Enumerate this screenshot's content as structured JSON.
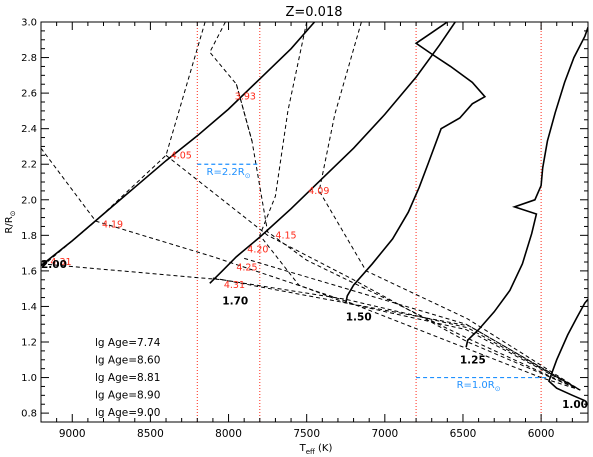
{
  "chart_data": {
    "type": "line",
    "title": "Z=0.018",
    "xlabel_main": "T",
    "xlabel_sub": "eff",
    "xlabel_unit": " (K)",
    "ylabel_main": "R/R",
    "ylabel_sub": "⊙",
    "xlim": [
      9200,
      5700
    ],
    "ylim": [
      0.75,
      3.0
    ],
    "x_ticks": [
      9000,
      8500,
      8000,
      7500,
      7000,
      6500,
      6000
    ],
    "x_tick_labels": [
      "9000",
      "8500",
      "8000",
      "7500",
      "7000",
      "6500",
      "6000"
    ],
    "y_ticks": [
      0.8,
      1.0,
      1.2,
      1.4,
      1.6,
      1.8,
      2.0,
      2.2,
      2.4,
      2.6,
      2.8,
      3.0
    ],
    "y_tick_labels": [
      "0.8",
      "1.0",
      "1.2",
      "1.4",
      "1.6",
      "1.8",
      "2.0",
      "2.2",
      "2.4",
      "2.6",
      "2.8",
      "3.0"
    ],
    "vlines": [
      8200,
      7800,
      6800,
      6000
    ],
    "colors": {
      "track": "#000000",
      "isochrone": "#000000",
      "age_label": "#ff2a1a",
      "radius_line": "#1e90ff",
      "vline": "#ff2a1a"
    },
    "tracks": [
      {
        "mass_label": "2.00",
        "label_at": [
          9200,
          1.615
        ],
        "points": [
          [
            9200,
            1.63
          ],
          [
            9000,
            1.77
          ],
          [
            8800,
            1.92
          ],
          [
            8600,
            2.07
          ],
          [
            8400,
            2.22
          ],
          [
            8200,
            2.36
          ],
          [
            8000,
            2.51
          ],
          [
            7800,
            2.68
          ],
          [
            7600,
            2.85
          ],
          [
            7450,
            3.0
          ]
        ]
      },
      {
        "mass_label": "1.70",
        "label_at": [
          8040,
          1.41
        ],
        "points": [
          [
            8120,
            1.53
          ],
          [
            8040,
            1.6
          ],
          [
            7950,
            1.68
          ],
          [
            7800,
            1.79
          ],
          [
            7600,
            1.95
          ],
          [
            7400,
            2.12
          ],
          [
            7200,
            2.29
          ],
          [
            7000,
            2.48
          ],
          [
            6800,
            2.69
          ],
          [
            6650,
            2.87
          ],
          [
            6550,
            3.0
          ]
        ]
      },
      {
        "mass_label": "1.50",
        "label_at": [
          7250,
          1.32
        ],
        "points": [
          [
            7250,
            1.42
          ],
          [
            7240,
            1.46
          ],
          [
            7200,
            1.52
          ],
          [
            7080,
            1.64
          ],
          [
            6950,
            1.78
          ],
          [
            6850,
            1.93
          ],
          [
            6780,
            2.07
          ],
          [
            6720,
            2.21
          ],
          [
            6640,
            2.4
          ],
          [
            6520,
            2.46
          ],
          [
            6440,
            2.54
          ],
          [
            6360,
            2.58
          ],
          [
            6440,
            2.66
          ],
          [
            6580,
            2.75
          ],
          [
            6700,
            2.82
          ],
          [
            6800,
            2.88
          ],
          [
            6700,
            2.94
          ],
          [
            6600,
            3.0
          ]
        ]
      },
      {
        "mass_label": "1.25",
        "label_at": [
          6520,
          1.08
        ],
        "points": [
          [
            6480,
            1.17
          ],
          [
            6470,
            1.21
          ],
          [
            6400,
            1.27
          ],
          [
            6300,
            1.37
          ],
          [
            6200,
            1.49
          ],
          [
            6120,
            1.64
          ],
          [
            6060,
            1.81
          ],
          [
            6030,
            1.92
          ],
          [
            6170,
            1.96
          ],
          [
            6040,
            2.0
          ],
          [
            6000,
            2.08
          ],
          [
            5990,
            2.18
          ],
          [
            5960,
            2.33
          ],
          [
            5910,
            2.49
          ],
          [
            5850,
            2.66
          ],
          [
            5790,
            2.8
          ],
          [
            5720,
            2.92
          ],
          [
            5700,
            2.97
          ]
        ]
      },
      {
        "mass_label": "1.00",
        "label_at": [
          5700,
          0.83
        ],
        "points": [
          [
            5720,
            0.87
          ],
          [
            5800,
            0.9
          ],
          [
            5900,
            0.94
          ],
          [
            5950,
            0.98
          ],
          [
            5900,
            1.1
          ],
          [
            5830,
            1.24
          ],
          [
            5770,
            1.34
          ],
          [
            5720,
            1.42
          ],
          [
            5700,
            1.44
          ]
        ]
      }
    ],
    "isochrones": [
      {
        "points": [
          [
            9200,
            2.29
          ],
          [
            8850,
            1.88
          ],
          [
            8100,
            1.68
          ],
          [
            7250,
            1.43
          ],
          [
            6000,
            1.0
          ],
          [
            5750,
            0.93
          ]
        ]
      },
      {
        "points": [
          [
            8400,
            2.25
          ],
          [
            7750,
            1.8
          ],
          [
            7200,
            1.55
          ],
          [
            6470,
            1.2
          ],
          [
            5750,
            0.93
          ]
        ]
      },
      {
        "points": [
          [
            8020,
            3.0
          ],
          [
            8120,
            2.83
          ],
          [
            7950,
            2.65
          ],
          [
            7850,
            2.33
          ],
          [
            7750,
            1.82
          ],
          [
            7500,
            1.66
          ],
          [
            6470,
            1.22
          ],
          [
            5750,
            0.93
          ]
        ]
      },
      {
        "points": [
          [
            8150,
            3.0
          ],
          [
            8400,
            2.25
          ],
          [
            8850,
            1.88
          ],
          [
            9200,
            1.62
          ]
        ]
      },
      {
        "points": [
          [
            7500,
            3.0
          ],
          [
            7620,
            2.5
          ],
          [
            7700,
            2.02
          ],
          [
            7800,
            1.8
          ],
          [
            7550,
            1.52
          ],
          [
            7250,
            1.42
          ],
          [
            6480,
            1.27
          ],
          [
            5750,
            0.93
          ]
        ]
      },
      {
        "points": [
          [
            7950,
            2.65
          ],
          [
            7850,
            2.33
          ]
        ]
      },
      {
        "points": [
          [
            9200,
            1.64
          ],
          [
            8040,
            1.55
          ],
          [
            7250,
            1.44
          ],
          [
            6470,
            1.28
          ],
          [
            5750,
            0.93
          ]
        ]
      },
      {
        "points": [
          [
            8100,
            1.56
          ],
          [
            6460,
            1.29
          ],
          [
            5750,
            0.93
          ]
        ]
      },
      {
        "points": [
          [
            7900,
            1.67
          ],
          [
            6480,
            1.3
          ],
          [
            5750,
            0.93
          ]
        ]
      },
      {
        "points": [
          [
            7150,
            3.0
          ],
          [
            7320,
            2.48
          ],
          [
            7420,
            2.05
          ],
          [
            7120,
            1.6
          ],
          [
            6470,
            1.33
          ],
          [
            5750,
            0.93
          ]
        ]
      }
    ],
    "age_labels": [
      {
        "text": "3.93",
        "at": [
          7960,
          2.58
        ]
      },
      {
        "text": "4.05",
        "at": [
          8370,
          2.25
        ]
      },
      {
        "text": "4.09",
        "at": [
          7490,
          2.05
        ]
      },
      {
        "text": "4.19",
        "at": [
          8810,
          1.86
        ]
      },
      {
        "text": "4.15",
        "at": [
          7700,
          1.8
        ]
      },
      {
        "text": "4.20",
        "at": [
          7880,
          1.72
        ]
      },
      {
        "text": "4.25",
        "at": [
          7950,
          1.62
        ]
      },
      {
        "text": "4.31",
        "at": [
          8030,
          1.52
        ]
      },
      {
        "text": "4.31",
        "at": [
          9140,
          1.65
        ]
      }
    ],
    "radius_markers": [
      {
        "label_prefix": "R=2.2R",
        "label_sub": "⊙",
        "x_range": [
          8200,
          7800
        ],
        "y": 2.2,
        "label_at": [
          8000,
          2.14
        ]
      },
      {
        "label_prefix": "R=1.0R",
        "label_sub": "⊙",
        "x_range": [
          6800,
          5950
        ],
        "y": 1.0,
        "label_at": [
          6400,
          0.94
        ]
      }
    ],
    "legend": {
      "placement": "lower-left",
      "entries": [
        "lg Age=7.74",
        "lg Age=8.60",
        "lg Age=8.81",
        "lg Age=8.90",
        "lg Age=9.00"
      ]
    }
  }
}
